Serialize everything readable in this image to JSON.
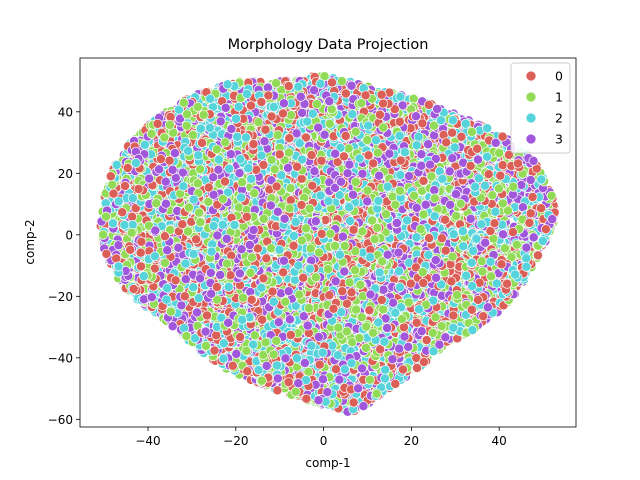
{
  "chart_data": {
    "type": "scatter",
    "title": "Morphology Data Projection",
    "xlabel": "comp-1",
    "ylabel": "comp-2",
    "xlim": [
      -55.5,
      57.5
    ],
    "ylim": [
      -62.5,
      57.5
    ],
    "xticks": [
      -40,
      -20,
      0,
      20,
      40
    ],
    "yticks": [
      -60,
      -40,
      -20,
      0,
      20,
      40
    ],
    "grid": false,
    "legend_position": "top-right",
    "series": [
      {
        "name": "0",
        "color": "#db5f57"
      },
      {
        "name": "1",
        "color": "#91db57"
      },
      {
        "name": "2",
        "color": "#57d3db"
      },
      {
        "name": "3",
        "color": "#a157db"
      }
    ],
    "cloud_outline": [
      [
        -51,
        4
      ],
      [
        -50,
        -5
      ],
      [
        -48,
        -12
      ],
      [
        -45,
        -18
      ],
      [
        -41,
        -23
      ],
      [
        -36,
        -28
      ],
      [
        -32,
        -33
      ],
      [
        -28,
        -38
      ],
      [
        -22,
        -44
      ],
      [
        -14,
        -49
      ],
      [
        -6,
        -53
      ],
      [
        2,
        -56
      ],
      [
        6,
        -58
      ],
      [
        10,
        -55
      ],
      [
        16,
        -49
      ],
      [
        22,
        -43
      ],
      [
        28,
        -36
      ],
      [
        34,
        -31
      ],
      [
        40,
        -25
      ],
      [
        45,
        -17
      ],
      [
        49,
        -7
      ],
      [
        52,
        2
      ],
      [
        53,
        8
      ],
      [
        51,
        17
      ],
      [
        47,
        26
      ],
      [
        40,
        33
      ],
      [
        32,
        38
      ],
      [
        24,
        43
      ],
      [
        16,
        46
      ],
      [
        8,
        49
      ],
      [
        0,
        52
      ],
      [
        -10,
        50
      ],
      [
        -20,
        50
      ],
      [
        -30,
        45
      ],
      [
        -38,
        38
      ],
      [
        -44,
        30
      ],
      [
        -48,
        22
      ],
      [
        -50,
        13
      ]
    ],
    "points_per_class": 3200
  }
}
